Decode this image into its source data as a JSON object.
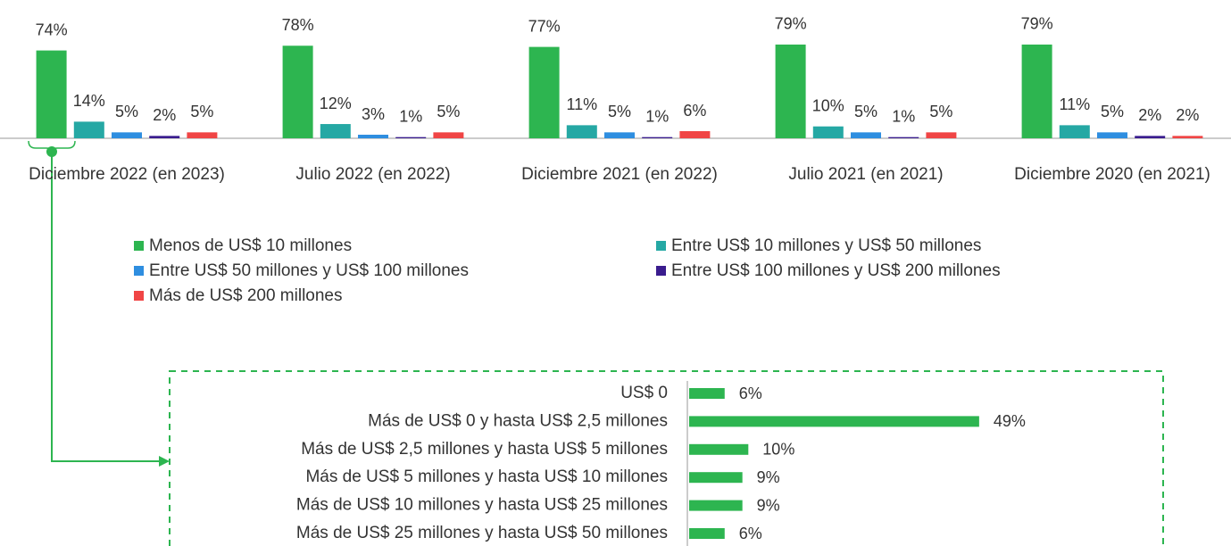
{
  "chart_data": [
    {
      "type": "bar",
      "categories": [
        "Diciembre 2022 (en 2023)",
        "Julio 2022 (en 2022)",
        "Diciembre 2021 (en 2022)",
        "Julio 2021 (en 2021)",
        "Diciembre 2020 (en 2021)"
      ],
      "series": [
        {
          "name": "Menos de US$ 10 millones",
          "color": "#2db550",
          "values": [
            74,
            78,
            77,
            79,
            79
          ],
          "value_labels": [
            "74%",
            "78%",
            "77%",
            "79%",
            "79%"
          ]
        },
        {
          "name": "Entre US$ 10 millones y US$ 50 millones",
          "color": "#25a8a4",
          "values": [
            14,
            12,
            11,
            10,
            11
          ],
          "value_labels": [
            "14%",
            "12%",
            "11%",
            "10%",
            "11%"
          ]
        },
        {
          "name": "Entre US$ 50 millones y US$ 100 millones",
          "color": "#2e8ee0",
          "values": [
            5,
            3,
            5,
            5,
            5
          ],
          "value_labels": [
            "5%",
            "3%",
            "5%",
            "5%",
            "5%"
          ]
        },
        {
          "name": "Entre US$ 100 millones y US$ 200 millones",
          "color": "#3a1c8e",
          "values": [
            2,
            1,
            1,
            1,
            2
          ],
          "value_labels": [
            "2%",
            "1%",
            "1%",
            "1%",
            "2%"
          ]
        },
        {
          "name": "Más de US$ 200 millones",
          "color": "#f04545",
          "values": [
            5,
            5,
            6,
            5,
            2
          ],
          "value_labels": [
            "5%",
            "5%",
            "6%",
            "5%",
            "2%"
          ]
        }
      ]
    },
    {
      "type": "barh",
      "categories": [
        "US$ 0",
        "Más de US$ 0 y  hasta US$ 2,5 millones",
        "Más de US$ 2,5 millones y hasta  US$ 5 millones",
        "Más de US$ 5 millones y hasta  US$ 10 millones",
        "Más de US$ 10 millones y hasta US$ 25 millones",
        "Más de US$ 25 millones y hasta US$ 50 millones"
      ],
      "values": [
        6,
        49,
        10,
        9,
        9,
        6
      ],
      "value_labels": [
        "6%",
        "49%",
        "10%",
        "9%",
        "9%",
        "6%"
      ],
      "color": "#2db550"
    }
  ]
}
